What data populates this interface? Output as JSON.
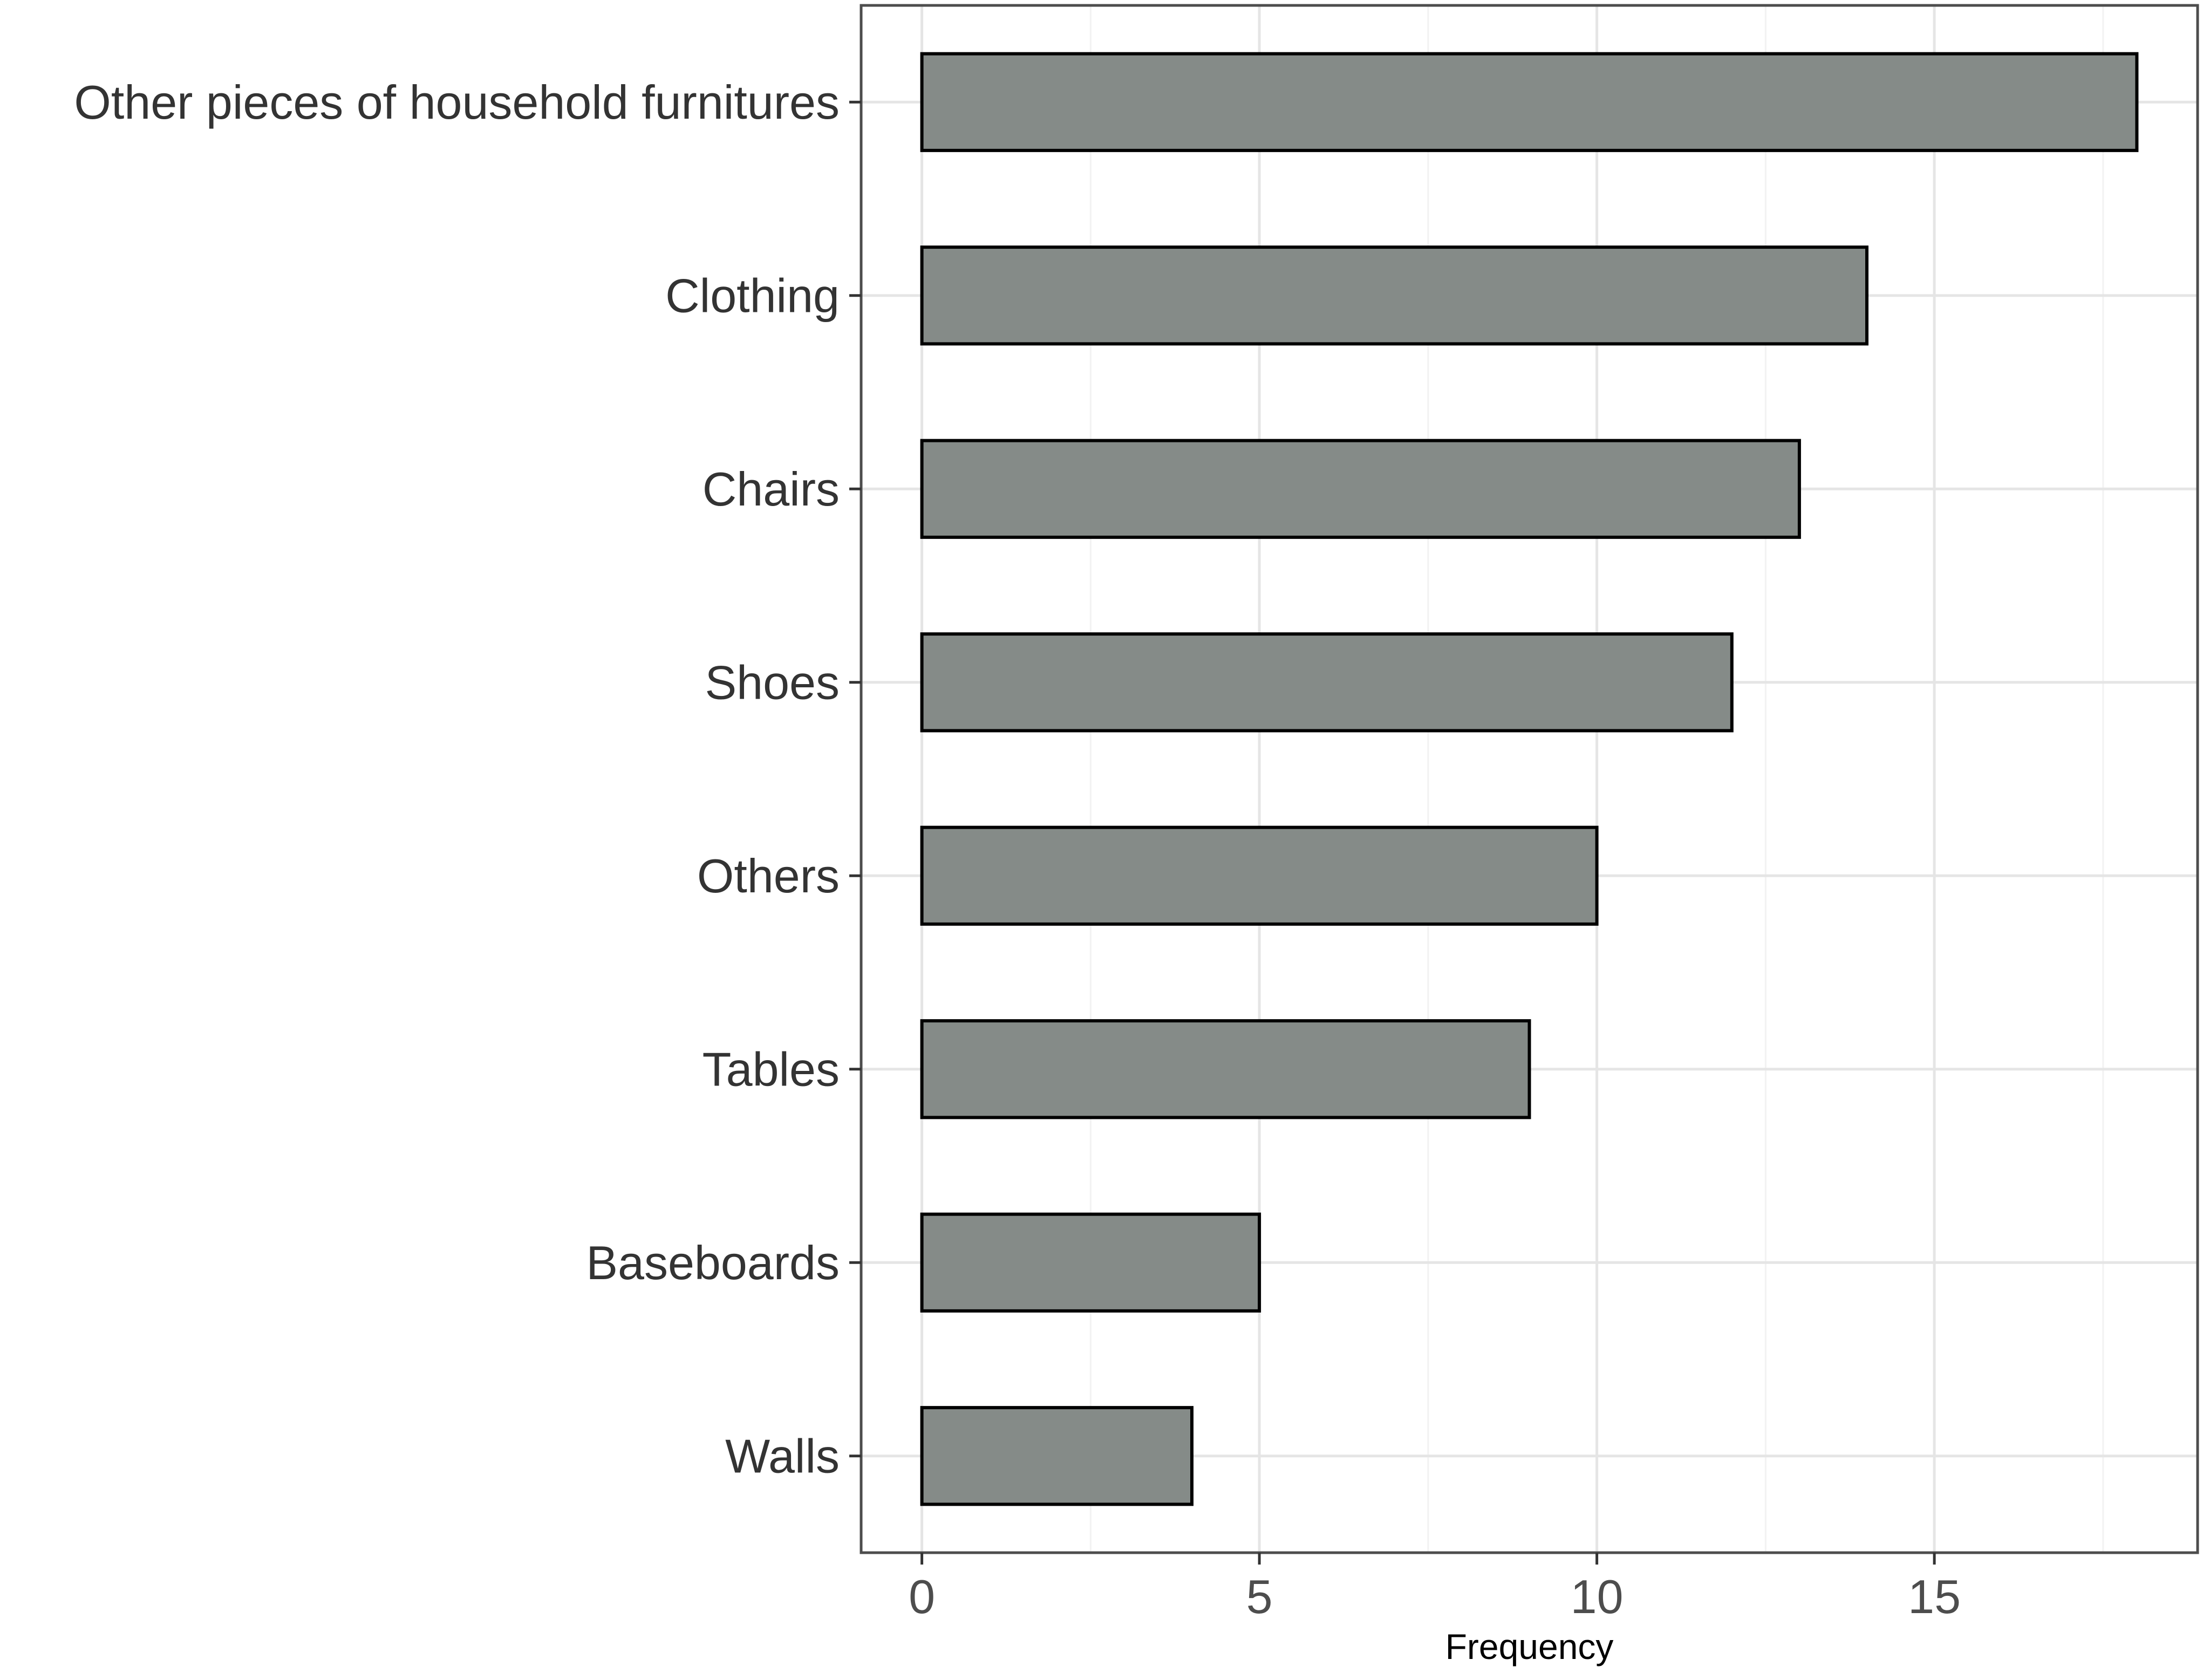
{
  "chart_data": {
    "type": "bar",
    "orientation": "horizontal",
    "categories": [
      "Other pieces of household furnitures",
      "Clothing",
      "Chairs",
      "Shoes",
      "Others",
      "Tables",
      "Baseboards",
      "Walls"
    ],
    "values": [
      18,
      14,
      13,
      12,
      10,
      9,
      5,
      4
    ],
    "xlabel": "Frequency",
    "ylabel": "",
    "xlim": [
      -0.9,
      18.9
    ],
    "xticks": [
      0,
      5,
      10,
      15
    ],
    "grid": true,
    "legend": "none",
    "colors": {
      "bar_fill": "#858b88",
      "bar_stroke": "#000000",
      "grid_major": "#e5e5e5",
      "grid_minor": "#f2f2f2",
      "panel_border": "#4d4d4d"
    }
  }
}
